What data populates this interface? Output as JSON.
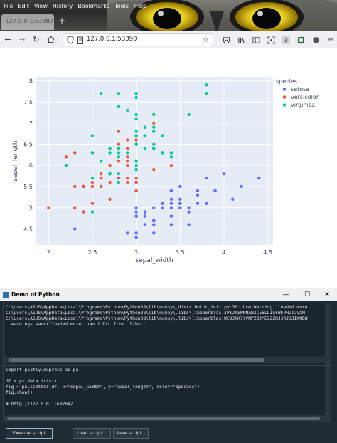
{
  "browser": {
    "menu": [
      {
        "label": "File",
        "ul": "F",
        "rest": "ile"
      },
      {
        "label": "Edit",
        "ul": "E",
        "rest": "dit"
      },
      {
        "label": "View",
        "ul": "V",
        "rest": "iew"
      },
      {
        "label": "History",
        "ul": "H",
        "rest": "istory"
      },
      {
        "label": "Bookmarks",
        "ul": "B",
        "rest": "ookmarks"
      },
      {
        "label": "Tools",
        "ul": "T",
        "rest": "ools"
      },
      {
        "label": "Help",
        "ul": "H",
        "rest": "elp"
      }
    ],
    "tab_title": "127.0.0.1:53390",
    "url": "127.0.0.1:53390",
    "new_tab": "+",
    "badge_count": "1"
  },
  "chart_data": {
    "type": "scatter",
    "xlabel": "sepal_width",
    "ylabel": "sepal_length",
    "xlim": [
      1.86,
      4.56
    ],
    "ylim": [
      4.12,
      8.09
    ],
    "xticks": [
      2,
      2.5,
      3,
      3.5,
      4,
      4.5
    ],
    "yticks": [
      4.5,
      5,
      5.5,
      6,
      6.5,
      7,
      7.5,
      8
    ],
    "legend_title": "species",
    "legend_position": "right",
    "series": [
      {
        "name": "setosa",
        "color": "#636efa",
        "points": [
          [
            3.5,
            5.1
          ],
          [
            3.0,
            4.9
          ],
          [
            3.2,
            4.7
          ],
          [
            3.1,
            4.6
          ],
          [
            3.6,
            5.0
          ],
          [
            3.9,
            5.4
          ],
          [
            3.4,
            4.6
          ],
          [
            3.4,
            5.0
          ],
          [
            2.9,
            4.4
          ],
          [
            3.1,
            4.9
          ],
          [
            3.7,
            5.4
          ],
          [
            3.4,
            4.8
          ],
          [
            3.0,
            4.8
          ],
          [
            3.0,
            4.3
          ],
          [
            4.0,
            5.8
          ],
          [
            4.4,
            5.7
          ],
          [
            3.9,
            5.4
          ],
          [
            3.5,
            5.1
          ],
          [
            3.8,
            5.7
          ],
          [
            3.8,
            5.1
          ],
          [
            3.4,
            5.4
          ],
          [
            3.7,
            5.1
          ],
          [
            3.6,
            4.6
          ],
          [
            3.3,
            5.1
          ],
          [
            3.4,
            4.8
          ],
          [
            3.0,
            5.0
          ],
          [
            3.4,
            5.0
          ],
          [
            3.5,
            5.2
          ],
          [
            3.4,
            5.2
          ],
          [
            3.2,
            4.7
          ],
          [
            3.1,
            4.8
          ],
          [
            3.4,
            5.4
          ],
          [
            4.1,
            5.2
          ],
          [
            4.2,
            5.5
          ],
          [
            3.1,
            4.9
          ],
          [
            3.2,
            5.0
          ],
          [
            3.5,
            5.5
          ],
          [
            3.6,
            4.9
          ],
          [
            3.0,
            4.4
          ],
          [
            3.4,
            5.1
          ],
          [
            3.5,
            5.0
          ],
          [
            2.3,
            4.5
          ],
          [
            3.2,
            4.4
          ],
          [
            3.5,
            5.0
          ],
          [
            3.8,
            5.1
          ],
          [
            3.0,
            4.8
          ],
          [
            3.8,
            5.1
          ],
          [
            3.2,
            4.6
          ],
          [
            3.7,
            5.3
          ],
          [
            3.3,
            5.0
          ]
        ]
      },
      {
        "name": "versicolor",
        "color": "#ef553b",
        "points": [
          [
            3.2,
            7.0
          ],
          [
            3.2,
            6.4
          ],
          [
            3.1,
            6.9
          ],
          [
            2.3,
            5.5
          ],
          [
            2.8,
            6.5
          ],
          [
            2.8,
            5.7
          ],
          [
            3.3,
            6.3
          ],
          [
            2.4,
            4.9
          ],
          [
            2.9,
            6.6
          ],
          [
            2.7,
            5.2
          ],
          [
            2.0,
            5.0
          ],
          [
            3.0,
            5.9
          ],
          [
            2.2,
            6.0
          ],
          [
            2.9,
            6.1
          ],
          [
            2.9,
            5.6
          ],
          [
            3.1,
            6.7
          ],
          [
            3.0,
            5.6
          ],
          [
            2.7,
            5.8
          ],
          [
            2.2,
            6.2
          ],
          [
            2.5,
            5.6
          ],
          [
            3.2,
            5.9
          ],
          [
            2.8,
            6.1
          ],
          [
            2.5,
            6.3
          ],
          [
            2.8,
            6.1
          ],
          [
            2.9,
            6.4
          ],
          [
            3.0,
            6.6
          ],
          [
            2.8,
            6.8
          ],
          [
            3.0,
            6.7
          ],
          [
            2.9,
            6.0
          ],
          [
            2.6,
            5.7
          ],
          [
            2.4,
            5.5
          ],
          [
            2.4,
            5.5
          ],
          [
            2.7,
            5.8
          ],
          [
            2.7,
            6.0
          ],
          [
            3.0,
            5.4
          ],
          [
            3.4,
            6.0
          ],
          [
            3.1,
            6.7
          ],
          [
            2.3,
            6.3
          ],
          [
            3.0,
            5.6
          ],
          [
            2.5,
            5.5
          ],
          [
            2.6,
            5.5
          ],
          [
            3.0,
            6.1
          ],
          [
            2.6,
            5.8
          ],
          [
            2.3,
            5.0
          ],
          [
            2.7,
            5.6
          ],
          [
            3.0,
            5.7
          ],
          [
            2.9,
            5.7
          ],
          [
            2.9,
            6.2
          ],
          [
            2.5,
            5.1
          ],
          [
            2.8,
            5.7
          ]
        ]
      },
      {
        "name": "virginica",
        "color": "#00cc96",
        "points": [
          [
            3.3,
            6.3
          ],
          [
            2.7,
            5.8
          ],
          [
            3.0,
            7.1
          ],
          [
            2.9,
            6.3
          ],
          [
            3.0,
            6.5
          ],
          [
            3.0,
            7.6
          ],
          [
            2.5,
            4.9
          ],
          [
            2.9,
            7.3
          ],
          [
            2.5,
            6.7
          ],
          [
            3.6,
            7.2
          ],
          [
            3.2,
            6.5
          ],
          [
            2.7,
            6.4
          ],
          [
            3.0,
            6.8
          ],
          [
            2.5,
            5.7
          ],
          [
            2.8,
            5.8
          ],
          [
            3.2,
            6.4
          ],
          [
            3.0,
            6.5
          ],
          [
            3.8,
            7.7
          ],
          [
            2.6,
            7.7
          ],
          [
            2.2,
            6.0
          ],
          [
            3.2,
            6.9
          ],
          [
            2.8,
            5.6
          ],
          [
            2.8,
            7.7
          ],
          [
            2.7,
            6.3
          ],
          [
            3.3,
            6.7
          ],
          [
            3.2,
            7.2
          ],
          [
            2.8,
            6.2
          ],
          [
            3.0,
            6.1
          ],
          [
            2.8,
            6.4
          ],
          [
            3.0,
            7.2
          ],
          [
            2.8,
            7.4
          ],
          [
            3.8,
            7.9
          ],
          [
            2.8,
            6.4
          ],
          [
            2.8,
            6.3
          ],
          [
            2.6,
            6.1
          ],
          [
            3.0,
            7.7
          ],
          [
            3.4,
            6.3
          ],
          [
            3.1,
            6.4
          ],
          [
            3.0,
            6.0
          ],
          [
            3.1,
            6.9
          ],
          [
            3.1,
            6.7
          ],
          [
            3.1,
            6.9
          ],
          [
            2.7,
            5.8
          ],
          [
            3.2,
            6.8
          ],
          [
            3.3,
            6.7
          ],
          [
            3.0,
            6.7
          ],
          [
            2.5,
            6.3
          ],
          [
            3.0,
            6.5
          ],
          [
            3.4,
            6.2
          ],
          [
            3.0,
            5.9
          ]
        ]
      }
    ]
  },
  "tk": {
    "title": "Demo of Python",
    "output_lines": [
      "C:\\Users\\ASUS\\AppData\\Local\\Programs\\Python\\Python38\\lib\\numpy\\_distributor_init.py:30: UserWarning: loaded more",
      "C:\\Users\\ASUS\\AppData\\Local\\Programs\\Python\\Python38\\lib\\numpy\\.libs\\libopenblas.JPIJNSWNNAN3CE6LLI5FWSPHUT2VXM",
      "C:\\Users\\ASUS\\AppData\\Local\\Programs\\Python\\Python38\\lib\\numpy\\.libs\\libopenblas.WCDJNK7YVMPZQ2ME2ZZHJJRJ3JIKNDW",
      "  warnings.warn(\"loaded more than 1 DLL from .libs:\""
    ],
    "code_lines": [
      "import plotly.express as px",
      "",
      "df = px.data.iris()",
      "fig = px.scatter(df, x=\"sepal_width\", y=\"sepal_length\", color=\"species\")",
      "fig.show()",
      "",
      "# http://127.0.0.1:63764/"
    ],
    "buttons": {
      "execute": "Execute script",
      "load": "Load script...",
      "save": "Save script..."
    }
  }
}
